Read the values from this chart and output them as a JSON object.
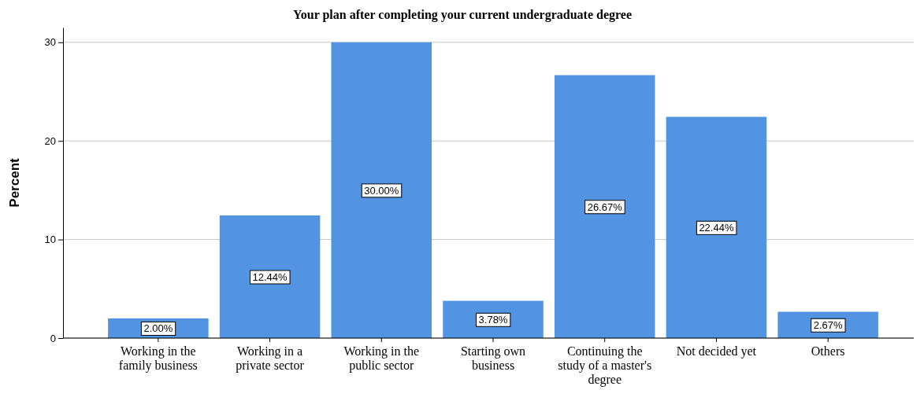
{
  "chart_data": {
    "type": "bar",
    "title": "Your plan after completing your current undergraduate degree",
    "ylabel": "Percent",
    "categories": [
      "Working in the family business",
      "Working in a private sector",
      "Working in the public sector",
      "Starting own business",
      "Continuing the study of a master's degree",
      "Not decided yet",
      "Others"
    ],
    "values": [
      2.0,
      12.44,
      30.0,
      3.78,
      26.67,
      22.44,
      2.67
    ],
    "value_labels": [
      "2.00%",
      "12.44%",
      "30.00%",
      "3.78%",
      "26.67%",
      "22.44%",
      "2.67%"
    ],
    "color": "#5294e2",
    "ylim": [
      0,
      31.5
    ],
    "yticks": [
      0,
      10,
      20,
      30
    ],
    "grid": "y"
  }
}
